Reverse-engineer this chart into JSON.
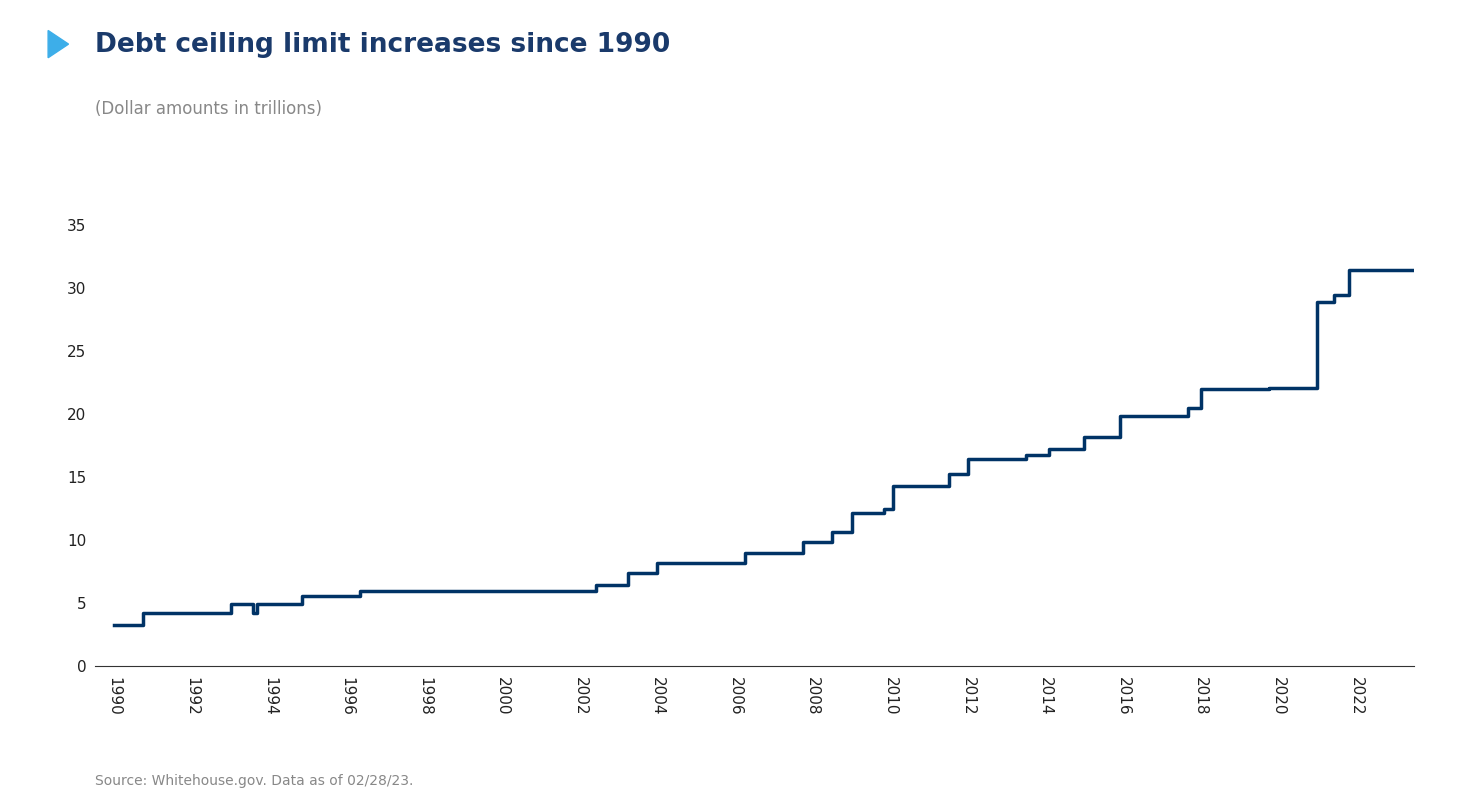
{
  "title": "Debt ceiling limit increases since 1990",
  "subtitle": "(Dollar amounts in trillions)",
  "source": "Source: Whitehouse.gov. Data as of 02/28/23.",
  "title_color": "#1a3a6b",
  "subtitle_color": "#888888",
  "source_color": "#888888",
  "line_color": "#003366",
  "line_width": 2.5,
  "triangle_color": "#3daee9",
  "background_color": "#ffffff",
  "ylim": [
    0,
    35
  ],
  "yticks": [
    0,
    5,
    10,
    15,
    20,
    25,
    30,
    35
  ],
  "xlim": [
    1989.5,
    2023.5
  ],
  "xtick_years": [
    1990,
    1992,
    1994,
    1996,
    1998,
    2000,
    2002,
    2004,
    2006,
    2008,
    2010,
    2012,
    2014,
    2016,
    2018,
    2020,
    2022
  ],
  "debt_ceiling_steps": [
    [
      1990.0,
      3.23
    ],
    [
      1990.75,
      3.23
    ],
    [
      1990.75,
      4.145
    ],
    [
      1993.0,
      4.145
    ],
    [
      1993.0,
      4.9
    ],
    [
      1993.58,
      4.9
    ],
    [
      1993.58,
      4.145
    ],
    [
      1993.67,
      4.145
    ],
    [
      1993.67,
      4.9
    ],
    [
      1994.83,
      4.9
    ],
    [
      1994.83,
      5.5
    ],
    [
      1996.33,
      5.5
    ],
    [
      1996.33,
      5.95
    ],
    [
      1997.75,
      5.95
    ],
    [
      1997.75,
      5.95
    ],
    [
      2002.42,
      5.95
    ],
    [
      2002.42,
      6.4
    ],
    [
      2003.25,
      6.4
    ],
    [
      2003.25,
      7.384
    ],
    [
      2004.0,
      7.384
    ],
    [
      2004.0,
      8.184
    ],
    [
      2006.25,
      8.184
    ],
    [
      2006.25,
      8.965
    ],
    [
      2007.75,
      8.965
    ],
    [
      2007.75,
      9.815
    ],
    [
      2008.5,
      9.815
    ],
    [
      2008.5,
      10.615
    ],
    [
      2009.0,
      10.615
    ],
    [
      2009.0,
      12.104
    ],
    [
      2009.83,
      12.104
    ],
    [
      2009.83,
      12.394
    ],
    [
      2010.08,
      12.394
    ],
    [
      2010.08,
      14.294
    ],
    [
      2011.5,
      14.294
    ],
    [
      2011.5,
      15.194
    ],
    [
      2012.0,
      15.194
    ],
    [
      2012.0,
      16.394
    ],
    [
      2013.5,
      16.394
    ],
    [
      2013.5,
      16.7
    ],
    [
      2014.08,
      16.7
    ],
    [
      2014.08,
      17.2
    ],
    [
      2015.0,
      17.2
    ],
    [
      2015.0,
      18.113
    ],
    [
      2015.92,
      18.113
    ],
    [
      2015.92,
      19.808
    ],
    [
      2017.67,
      19.808
    ],
    [
      2017.67,
      20.456
    ],
    [
      2018.0,
      20.456
    ],
    [
      2018.0,
      21.988
    ],
    [
      2019.75,
      21.988
    ],
    [
      2019.75,
      22.0
    ],
    [
      2021.0,
      22.0
    ],
    [
      2021.0,
      28.881
    ],
    [
      2021.42,
      28.881
    ],
    [
      2021.42,
      29.381
    ],
    [
      2021.83,
      29.381
    ],
    [
      2021.83,
      31.381
    ],
    [
      2023.5,
      31.381
    ]
  ]
}
